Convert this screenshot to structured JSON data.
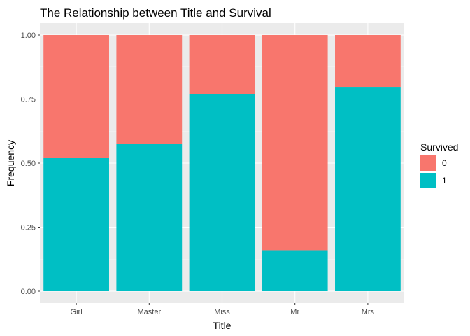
{
  "chart_data": {
    "type": "bar",
    "stacked": "fill",
    "title": "The Relationship between Title and Survival",
    "xlabel": "Title",
    "ylabel": "Frequency",
    "ylim": [
      0,
      1
    ],
    "yticks": [
      "0.00",
      "0.25",
      "0.50",
      "0.75",
      "1.00"
    ],
    "ytick_values": [
      0,
      0.25,
      0.5,
      0.75,
      1.0
    ],
    "categories": [
      "Girl",
      "Master",
      "Miss",
      "Mr",
      "Mrs"
    ],
    "series": [
      {
        "name": "0",
        "color": "#F8766D",
        "values": [
          0.48,
          0.425,
          0.23,
          0.84,
          0.205
        ]
      },
      {
        "name": "1",
        "color": "#00BFC4",
        "values": [
          0.52,
          0.575,
          0.77,
          0.16,
          0.795
        ]
      }
    ],
    "legend": {
      "title": "Survived",
      "position": "right"
    },
    "grid": true,
    "panel_background": "#EBEBEB"
  }
}
